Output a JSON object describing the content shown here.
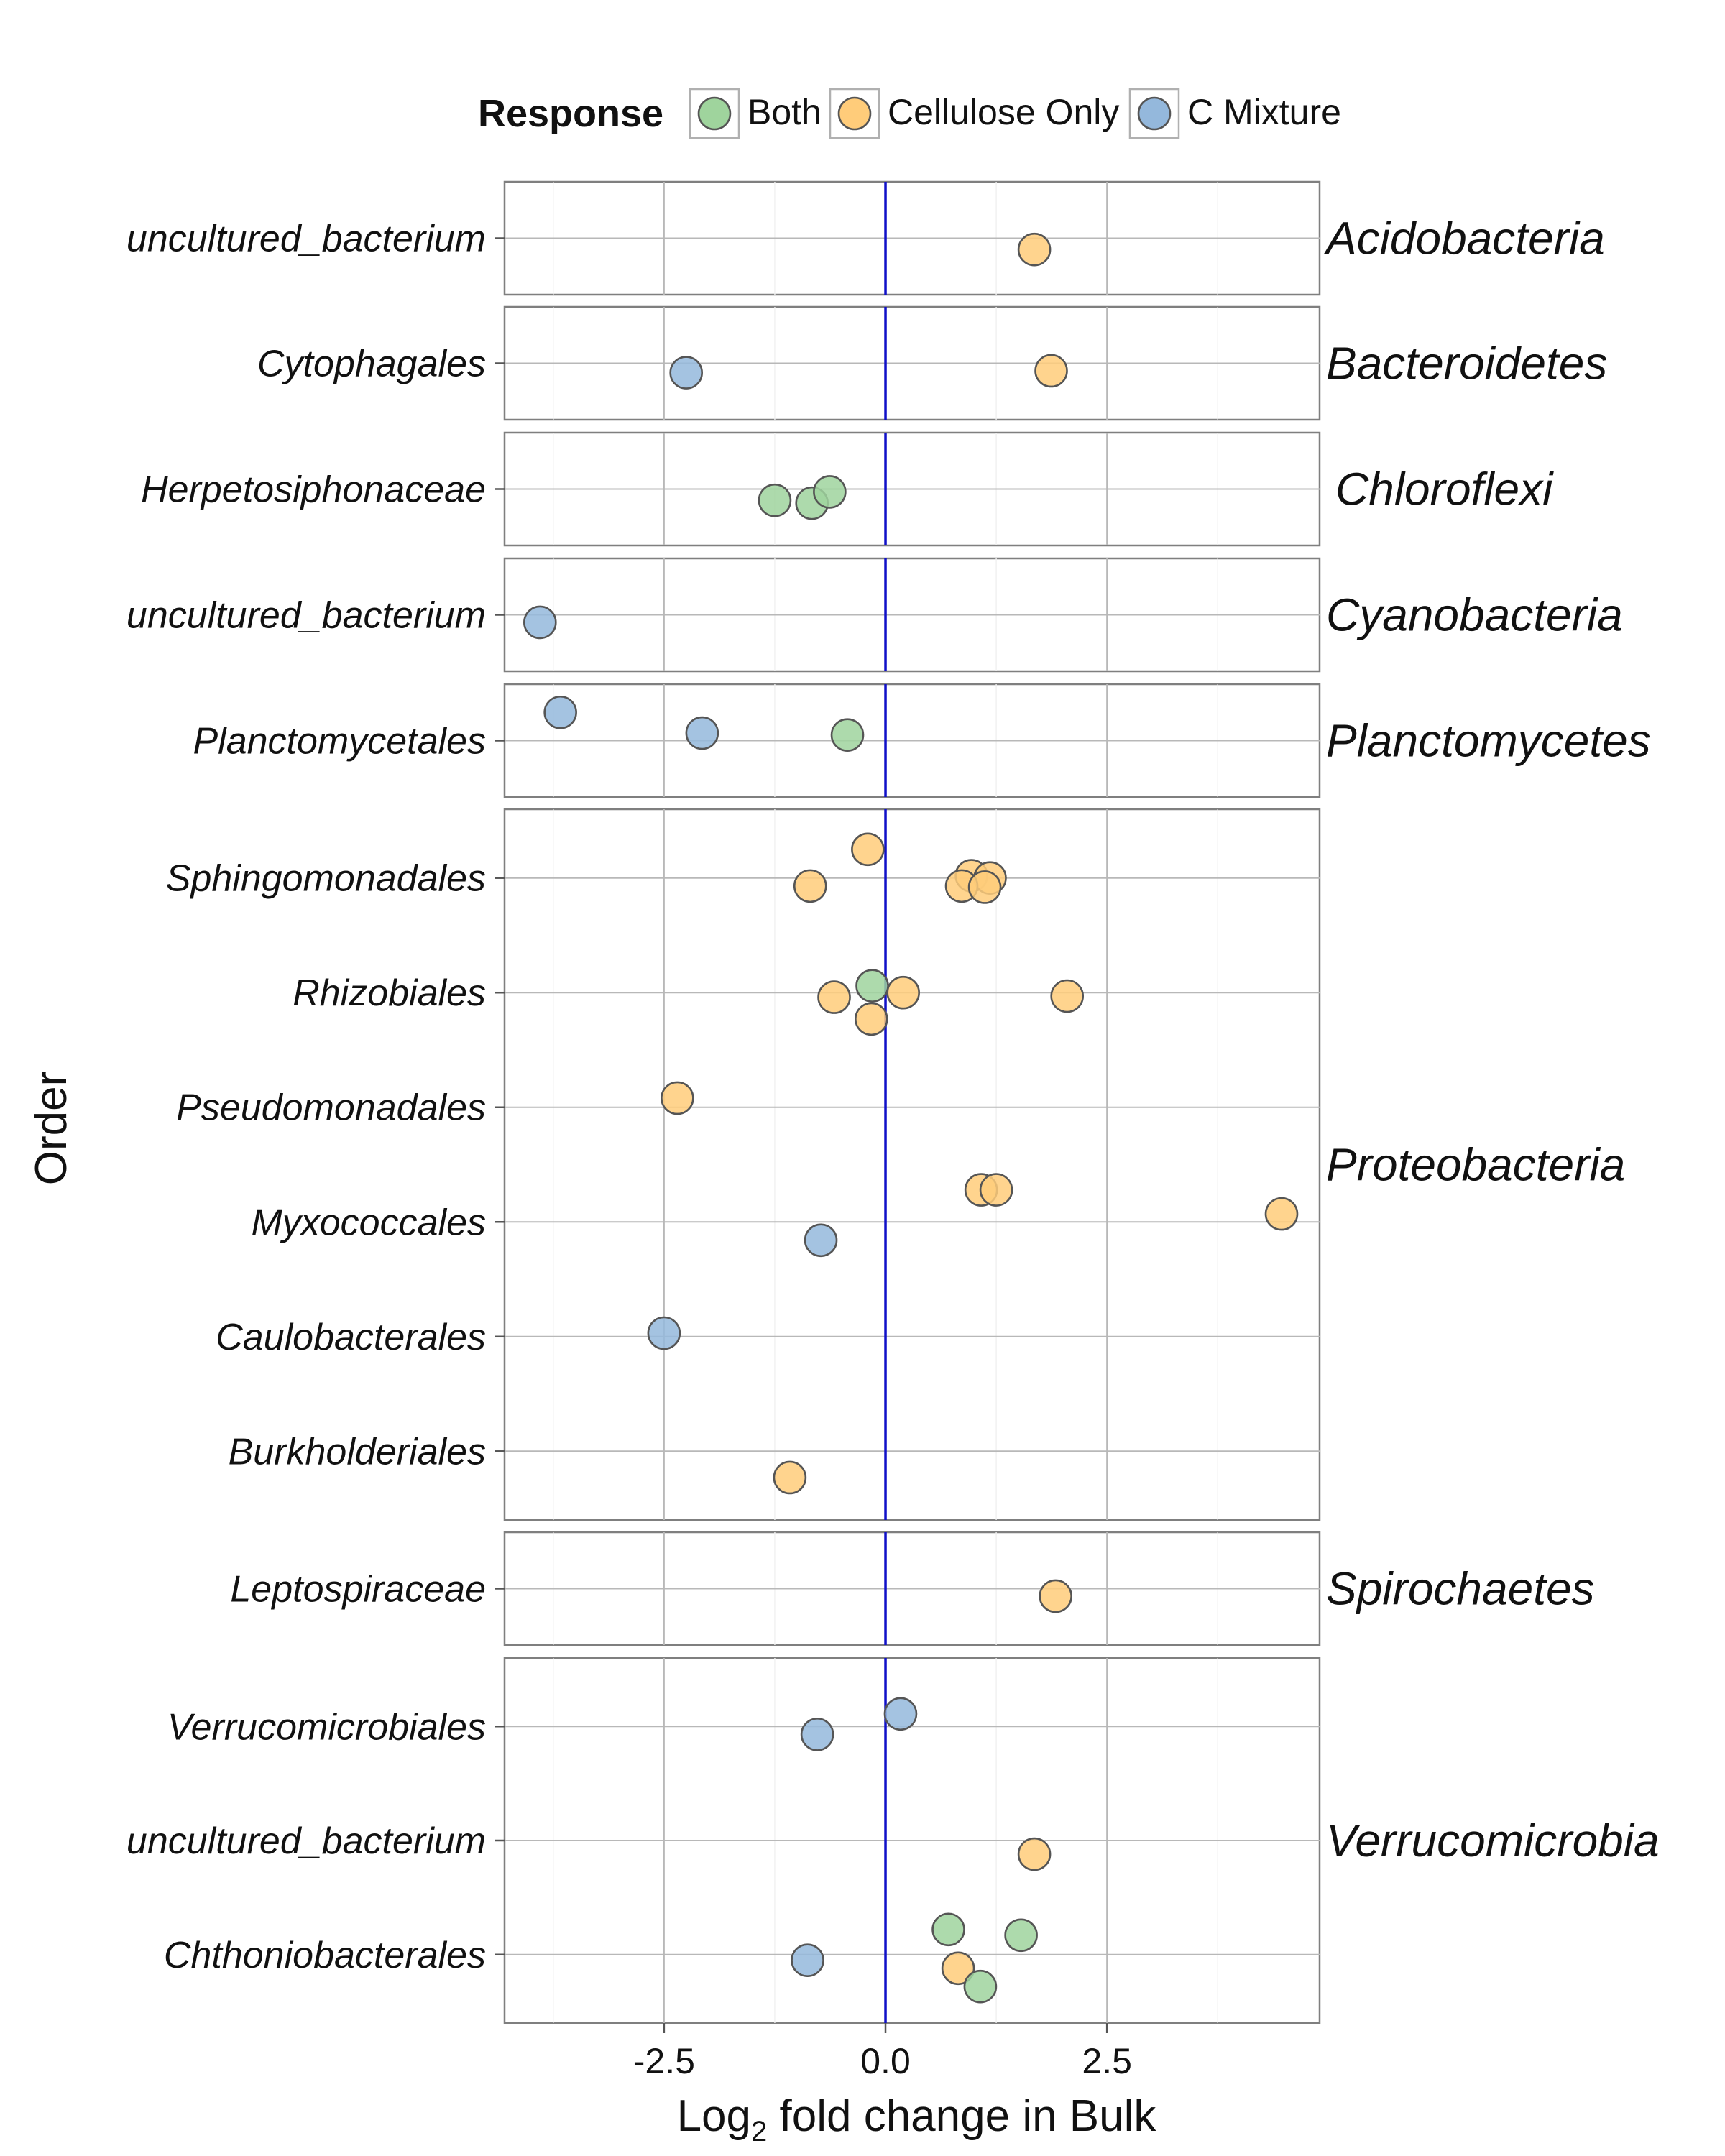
{
  "chart_data": {
    "type": "scatter",
    "title": "",
    "xlabel": "fold change in Bulk",
    "xlabel_prefix": "Log",
    "xlabel_subscript": "2",
    "ylabel": "Order",
    "xlim": [
      -4.3,
      4.9
    ],
    "x_ticks": [
      -2.5,
      0.0,
      2.5
    ],
    "x_tick_labels": [
      "-2.5",
      "0.0",
      "2.5"
    ],
    "reference_line_x": 0,
    "grid": true,
    "legend": {
      "title": "Response",
      "position": "top",
      "entries": [
        {
          "label": "Both",
          "color": "#9fd49d"
        },
        {
          "label": "Cellulose Only",
          "color": "#ffcc7a"
        },
        {
          "label": "C Mixture",
          "color": "#94b8dc"
        }
      ]
    },
    "panels": [
      {
        "phylum": "Acidobacteria",
        "orders": [
          "uncultured_bacterium"
        ],
        "points": [
          {
            "order": 0,
            "x": 1.68,
            "jitter": -0.12,
            "response": "Cellulose Only"
          }
        ]
      },
      {
        "phylum": "Bacteroidetes",
        "orders": [
          "Cytophagales"
        ],
        "points": [
          {
            "order": 0,
            "x": -2.25,
            "jitter": -0.1,
            "response": "C Mixture"
          },
          {
            "order": 0,
            "x": 1.87,
            "jitter": -0.08,
            "response": "Cellulose Only"
          }
        ]
      },
      {
        "phylum": "Chloroflexi",
        "orders": [
          "Herpetosiphonaceae"
        ],
        "points": [
          {
            "order": 0,
            "x": -1.25,
            "jitter": -0.12,
            "response": "Both"
          },
          {
            "order": 0,
            "x": -0.83,
            "jitter": -0.15,
            "response": "Both"
          },
          {
            "order": 0,
            "x": -0.63,
            "jitter": -0.03,
            "response": "Both"
          }
        ]
      },
      {
        "phylum": "Cyanobacteria",
        "orders": [
          "uncultured_bacterium"
        ],
        "points": [
          {
            "order": 0,
            "x": -3.9,
            "jitter": -0.08,
            "response": "C Mixture"
          }
        ]
      },
      {
        "phylum": "Planctomycetes",
        "orders": [
          "Planctomycetales"
        ],
        "points": [
          {
            "order": 0,
            "x": -3.67,
            "jitter": 0.3,
            "response": "C Mixture"
          },
          {
            "order": 0,
            "x": -2.07,
            "jitter": 0.08,
            "response": "C Mixture"
          },
          {
            "order": 0,
            "x": -0.43,
            "jitter": 0.06,
            "response": "Both"
          }
        ]
      },
      {
        "phylum": "Proteobacteria",
        "orders": [
          "Sphingomonadales",
          "Rhizobiales",
          "Pseudomonadales",
          "Myxococcales",
          "Caulobacterales",
          "Burkholderiales"
        ],
        "points": [
          {
            "order": 0,
            "x": -0.2,
            "jitter": 0.25,
            "response": "Cellulose Only"
          },
          {
            "order": 0,
            "x": -0.85,
            "jitter": -0.07,
            "response": "Cellulose Only"
          },
          {
            "order": 0,
            "x": 0.97,
            "jitter": 0.02,
            "response": "Cellulose Only"
          },
          {
            "order": 0,
            "x": 1.18,
            "jitter": 0.0,
            "response": "Cellulose Only"
          },
          {
            "order": 0,
            "x": 0.86,
            "jitter": -0.07,
            "response": "Cellulose Only"
          },
          {
            "order": 0,
            "x": 1.12,
            "jitter": -0.08,
            "response": "Cellulose Only"
          },
          {
            "order": 1,
            "x": -0.15,
            "jitter": 0.06,
            "response": "Both"
          },
          {
            "order": 1,
            "x": -0.58,
            "jitter": -0.04,
            "response": "Cellulose Only"
          },
          {
            "order": 1,
            "x": 0.2,
            "jitter": 0.0,
            "response": "Cellulose Only"
          },
          {
            "order": 1,
            "x": 2.05,
            "jitter": -0.03,
            "response": "Cellulose Only"
          },
          {
            "order": 1,
            "x": -0.16,
            "jitter": -0.23,
            "response": "Cellulose Only"
          },
          {
            "order": 2,
            "x": -2.35,
            "jitter": 0.08,
            "response": "Cellulose Only"
          },
          {
            "order": 3,
            "x": 1.08,
            "jitter": 0.28,
            "response": "Cellulose Only"
          },
          {
            "order": 3,
            "x": 1.25,
            "jitter": 0.28,
            "response": "Cellulose Only"
          },
          {
            "order": 3,
            "x": 4.47,
            "jitter": 0.07,
            "response": "Cellulose Only"
          },
          {
            "order": 3,
            "x": -0.73,
            "jitter": -0.16,
            "response": "C Mixture"
          },
          {
            "order": 4,
            "x": -2.5,
            "jitter": 0.03,
            "response": "C Mixture"
          },
          {
            "order": 5,
            "x": -1.08,
            "jitter": -0.23,
            "response": "Cellulose Only"
          }
        ]
      },
      {
        "phylum": "Spirochaetes",
        "orders": [
          "Leptospiraceae"
        ],
        "points": [
          {
            "order": 0,
            "x": 1.92,
            "jitter": -0.08,
            "response": "Cellulose Only"
          }
        ]
      },
      {
        "phylum": "Verrucomicrobia",
        "orders": [
          "Verrucomicrobiales",
          "uncultured_bacterium",
          "Chthoniobacterales"
        ],
        "points": [
          {
            "order": 0,
            "x": 0.17,
            "jitter": 0.11,
            "response": "C Mixture"
          },
          {
            "order": 0,
            "x": -0.77,
            "jitter": -0.07,
            "response": "C Mixture"
          },
          {
            "order": 1,
            "x": 1.68,
            "jitter": -0.12,
            "response": "Cellulose Only"
          },
          {
            "order": 2,
            "x": 0.71,
            "jitter": 0.22,
            "response": "Both"
          },
          {
            "order": 2,
            "x": 1.53,
            "jitter": 0.17,
            "response": "Both"
          },
          {
            "order": 2,
            "x": -0.88,
            "jitter": -0.05,
            "response": "C Mixture"
          },
          {
            "order": 2,
            "x": 0.82,
            "jitter": -0.12,
            "response": "Cellulose Only"
          },
          {
            "order": 2,
            "x": 1.07,
            "jitter": -0.28,
            "response": "Both"
          }
        ]
      }
    ]
  }
}
